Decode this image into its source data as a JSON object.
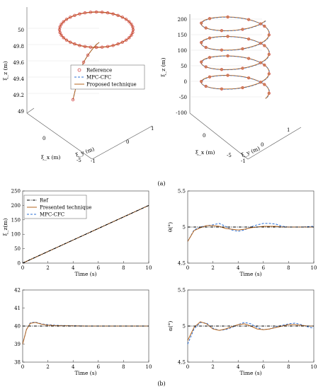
{
  "figure": {
    "caption_a": "(a)",
    "caption_b": "(b)"
  },
  "colors": {
    "ref": "#000000",
    "mpc": "#2b6fd6",
    "proposed": "#b5651d",
    "marker": "#d44a4a",
    "axis": "#555555"
  },
  "chart_data": [
    {
      "id": "a-left",
      "type": "line3d",
      "zlabel": "ξ_z (m)",
      "xlabel": "ξ_x (m)",
      "ylabel": "ξ_y (m)",
      "zticks": [
        "49",
        "49.2",
        "49.4",
        "49.6",
        "49.8",
        "50"
      ],
      "xticks": [
        "-5",
        "0"
      ],
      "yticks": [
        "-1",
        "0",
        "1"
      ],
      "legend": [
        "Reference",
        "MPC-CFC",
        "Proposed technique"
      ],
      "legend_position": "lower-left",
      "description_values": {
        "circle_z": 50,
        "start_z": 49.1
      }
    },
    {
      "id": "a-right",
      "type": "line3d",
      "zlabel": "ξ_z (m)",
      "xlabel": "ξ_x (m)",
      "ylabel": "ξ_y (m)",
      "zticks": [
        "-100",
        "-50",
        "0",
        "50",
        "100",
        "150",
        "200"
      ],
      "xticks": [
        "-5",
        "0"
      ],
      "yticks": [
        "-1",
        "0",
        "1"
      ],
      "turns": 4
    },
    {
      "id": "b-xi-z",
      "type": "line",
      "xlabel": "Time (s)",
      "ylabel": "ξ_z(m)",
      "xlim": [
        0,
        10
      ],
      "ylim": [
        0,
        250
      ],
      "xticks": [
        "0",
        "2",
        "4",
        "6",
        "8",
        "10"
      ],
      "yticks": [
        "0",
        "50",
        "100",
        "150",
        "200",
        "250"
      ],
      "legend": [
        "Ref",
        "Presented technique",
        "MPC-CFC"
      ],
      "legend_position": "top-left",
      "series": [
        {
          "name": "Ref",
          "x": [
            0,
            10
          ],
          "y": [
            0,
            200
          ]
        },
        {
          "name": "Presented technique",
          "x": [
            0,
            10
          ],
          "y": [
            0,
            200
          ]
        },
        {
          "name": "MPC-CFC",
          "x": [
            0,
            10
          ],
          "y": [
            0,
            200
          ]
        }
      ]
    },
    {
      "id": "b-theta",
      "type": "line",
      "xlabel": "Time (s)",
      "ylabel": "θ(°)",
      "xlim": [
        0,
        10
      ],
      "ylim": [
        4.5,
        5.5
      ],
      "xticks": [
        "0",
        "2",
        "4",
        "6",
        "8",
        "10"
      ],
      "yticks": [
        "4.5",
        "5",
        "5.5"
      ],
      "series": [
        {
          "name": "Ref",
          "x": [
            0,
            10
          ],
          "y": [
            5,
            5
          ]
        },
        {
          "name": "Presented technique",
          "x": [
            0,
            0.5,
            1,
            1.5,
            2,
            2.5,
            3,
            3.5,
            4,
            4.5,
            5,
            5.5,
            6,
            6.5,
            7,
            7.5,
            8,
            9,
            10
          ],
          "y": [
            4.8,
            4.95,
            4.99,
            5.02,
            5.02,
            5.01,
            4.98,
            4.97,
            4.96,
            4.97,
            4.99,
            5.0,
            5.01,
            5.01,
            5.01,
            5.0,
            5.0,
            5.0,
            5.0
          ]
        },
        {
          "name": "MPC-CFC",
          "x": [
            0,
            0.5,
            1,
            1.5,
            2,
            2.5,
            3,
            3.5,
            4,
            4.5,
            5,
            5.5,
            6,
            6.5,
            7,
            7.5,
            8,
            9,
            10
          ],
          "y": [
            4.8,
            4.96,
            5.0,
            5.02,
            5.03,
            5.05,
            5.01,
            4.96,
            4.94,
            4.96,
            5.0,
            5.03,
            5.05,
            5.05,
            5.04,
            5.01,
            5.0,
            5.0,
            5.01
          ]
        }
      ]
    },
    {
      "id": "b-bottom-left",
      "type": "line",
      "xlabel": "Time (s)",
      "ylabel": "",
      "xlim": [
        0,
        10
      ],
      "ylim": [
        38,
        42
      ],
      "xticks": [
        "0",
        "2",
        "4",
        "6",
        "8",
        "10"
      ],
      "yticks": [
        "38",
        "39",
        "40",
        "41",
        "42"
      ],
      "series": [
        {
          "name": "Ref",
          "x": [
            0,
            10
          ],
          "y": [
            40,
            40
          ]
        },
        {
          "name": "Presented technique",
          "x": [
            0,
            0.3,
            0.6,
            1,
            1.5,
            2,
            2.5,
            3,
            4,
            5,
            6,
            7,
            8,
            9,
            10
          ],
          "y": [
            39.0,
            39.8,
            40.15,
            40.2,
            40.1,
            40.05,
            40.03,
            40.02,
            40.01,
            40.0,
            40.0,
            40.0,
            40.0,
            40.0,
            40.0
          ]
        },
        {
          "name": "MPC-CFC",
          "x": [
            0,
            0.3,
            0.6,
            1,
            1.5,
            2,
            2.5,
            3,
            4,
            5,
            6,
            7,
            8,
            9,
            10
          ],
          "y": [
            39.0,
            39.8,
            40.18,
            40.22,
            40.12,
            40.08,
            40.05,
            40.03,
            40.02,
            40.0,
            40.0,
            40.0,
            40.0,
            40.0,
            40.0
          ]
        }
      ]
    },
    {
      "id": "b-alpha",
      "type": "line",
      "xlabel": "Time (s)",
      "ylabel": "α(°)",
      "xlim": [
        0,
        10
      ],
      "ylim": [
        4.5,
        5.5
      ],
      "xticks": [
        "0",
        "2",
        "4",
        "6",
        "8",
        "10"
      ],
      "yticks": [
        "4.5",
        "5",
        "5.5"
      ],
      "series": [
        {
          "name": "Ref",
          "x": [
            0,
            10
          ],
          "y": [
            5,
            5
          ]
        },
        {
          "name": "Presented technique",
          "x": [
            0,
            0.5,
            1,
            1.5,
            2,
            2.5,
            3,
            3.5,
            4,
            4.5,
            5,
            5.5,
            6,
            6.5,
            7,
            7.5,
            8,
            8.5,
            9,
            9.5,
            10
          ],
          "y": [
            4.8,
            4.98,
            5.06,
            5.03,
            4.96,
            4.94,
            4.96,
            4.99,
            5.02,
            5.03,
            5.0,
            4.96,
            4.95,
            4.96,
            4.98,
            5.0,
            5.02,
            5.02,
            5.01,
            5.0,
            5.0
          ]
        },
        {
          "name": "MPC-CFC",
          "x": [
            0,
            0.5,
            1,
            1.5,
            2,
            2.5,
            3,
            3.5,
            4,
            4.5,
            5,
            5.5,
            6,
            6.5,
            7,
            7.5,
            8,
            8.5,
            9,
            9.5,
            10
          ],
          "y": [
            4.75,
            4.96,
            5.05,
            5.04,
            4.97,
            4.94,
            4.95,
            4.98,
            5.02,
            5.05,
            5.03,
            4.98,
            4.95,
            4.96,
            4.99,
            5.01,
            5.03,
            5.04,
            5.02,
            4.99,
            4.97
          ]
        }
      ]
    }
  ]
}
